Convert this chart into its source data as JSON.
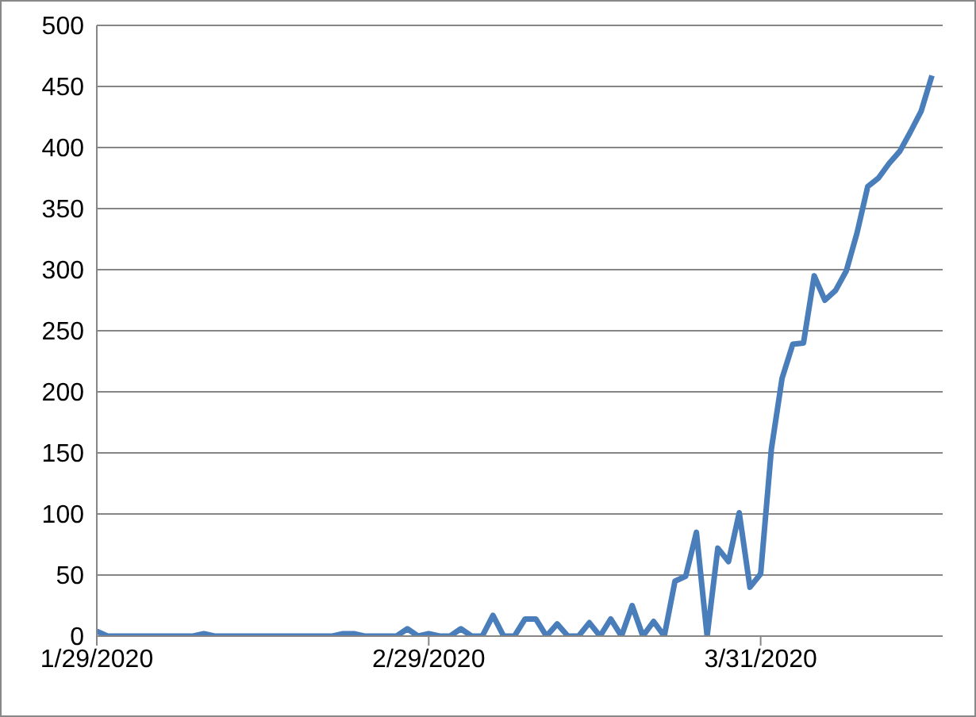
{
  "chart_data": {
    "type": "line",
    "x": [
      "2020-01-29",
      "2020-01-30",
      "2020-01-31",
      "2020-02-01",
      "2020-02-02",
      "2020-02-03",
      "2020-02-04",
      "2020-02-05",
      "2020-02-06",
      "2020-02-07",
      "2020-02-08",
      "2020-02-09",
      "2020-02-10",
      "2020-02-11",
      "2020-02-12",
      "2020-02-13",
      "2020-02-14",
      "2020-02-15",
      "2020-02-16",
      "2020-02-17",
      "2020-02-18",
      "2020-02-19",
      "2020-02-20",
      "2020-02-21",
      "2020-02-22",
      "2020-02-23",
      "2020-02-24",
      "2020-02-25",
      "2020-02-26",
      "2020-02-27",
      "2020-02-28",
      "2020-02-29",
      "2020-03-01",
      "2020-03-02",
      "2020-03-03",
      "2020-03-04",
      "2020-03-05",
      "2020-03-06",
      "2020-03-07",
      "2020-03-08",
      "2020-03-09",
      "2020-03-10",
      "2020-03-11",
      "2020-03-12",
      "2020-03-13",
      "2020-03-14",
      "2020-03-15",
      "2020-03-16",
      "2020-03-17",
      "2020-03-18",
      "2020-03-19",
      "2020-03-20",
      "2020-03-21",
      "2020-03-22",
      "2020-03-23",
      "2020-03-24",
      "2020-03-25",
      "2020-03-26",
      "2020-03-27",
      "2020-03-28",
      "2020-03-29",
      "2020-03-30",
      "2020-03-31",
      "2020-04-01",
      "2020-04-02",
      "2020-04-03",
      "2020-04-04",
      "2020-04-05",
      "2020-04-06",
      "2020-04-07",
      "2020-04-08",
      "2020-04-09",
      "2020-04-10",
      "2020-04-11",
      "2020-04-12",
      "2020-04-13",
      "2020-04-14",
      "2020-04-15",
      "2020-04-16"
    ],
    "series": [
      {
        "color": "#4a7ebb",
        "values": [
          4,
          0,
          0,
          0,
          0,
          0,
          0,
          0,
          0,
          0,
          2,
          0,
          0,
          0,
          0,
          0,
          0,
          0,
          0,
          0,
          0,
          0,
          0,
          2,
          2,
          0,
          0,
          0,
          0,
          6,
          0,
          2,
          0,
          0,
          6,
          0,
          0,
          17,
          0,
          0,
          14,
          14,
          0,
          10,
          0,
          0,
          11,
          0,
          14,
          0,
          25,
          0,
          12,
          0,
          45,
          49,
          85,
          0,
          72,
          61,
          101,
          40,
          51,
          153,
          211,
          239,
          240,
          295,
          275,
          283,
          299,
          330,
          368,
          375,
          387,
          397,
          413,
          430,
          459
        ]
      }
    ],
    "xlim": [
      "2020-01-29",
      "2020-04-17"
    ],
    "xticks": [
      {
        "value": "2020-01-29",
        "label": "1/29/2020"
      },
      {
        "value": "2020-02-29",
        "label": "2/29/2020"
      },
      {
        "value": "2020-03-31",
        "label": "3/31/2020"
      }
    ],
    "ylim": [
      0,
      500
    ],
    "yticks": [
      0,
      50,
      100,
      150,
      200,
      250,
      300,
      350,
      400,
      450,
      500
    ],
    "grid": "y",
    "marker": "none",
    "line_style": "solid"
  }
}
